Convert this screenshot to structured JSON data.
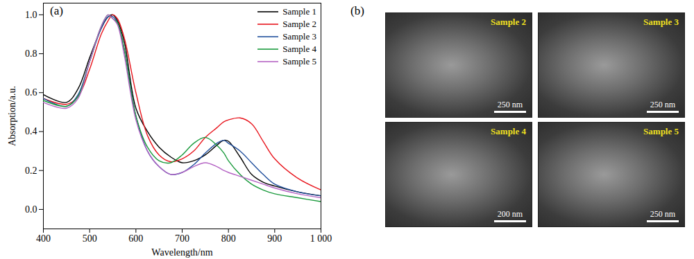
{
  "chart_data": {
    "type": "line",
    "panel_label": "(a)",
    "x_label": "Wavelength/nm",
    "y_label": "Absorption/a.u.",
    "x": [
      400,
      450,
      475,
      500,
      525,
      540,
      550,
      560,
      575,
      600,
      625,
      650,
      675,
      700,
      725,
      750,
      775,
      790,
      800,
      825,
      850,
      875,
      900,
      950,
      1000
    ],
    "series": [
      {
        "name": "Sample 1",
        "color": "#000000",
        "values": [
          0.59,
          0.55,
          0.62,
          0.78,
          0.93,
          0.99,
          1.0,
          0.97,
          0.86,
          0.52,
          0.4,
          0.32,
          0.27,
          0.24,
          0.25,
          0.28,
          0.33,
          0.355,
          0.35,
          0.27,
          0.18,
          0.14,
          0.12,
          0.09,
          0.07
        ]
      },
      {
        "name": "Sample 2",
        "color": "#e8141c",
        "values": [
          0.57,
          0.54,
          0.58,
          0.72,
          0.9,
          0.97,
          1.0,
          0.98,
          0.88,
          0.6,
          0.38,
          0.28,
          0.245,
          0.26,
          0.3,
          0.37,
          0.42,
          0.45,
          0.46,
          0.47,
          0.44,
          0.35,
          0.26,
          0.16,
          0.1
        ]
      },
      {
        "name": "Sample 3",
        "color": "#1f4e9c",
        "values": [
          0.57,
          0.53,
          0.59,
          0.76,
          0.93,
          0.99,
          0.99,
          0.96,
          0.82,
          0.48,
          0.3,
          0.22,
          0.18,
          0.19,
          0.23,
          0.29,
          0.34,
          0.355,
          0.34,
          0.3,
          0.24,
          0.18,
          0.13,
          0.09,
          0.07
        ]
      },
      {
        "name": "Sample 4",
        "color": "#1a9a3c",
        "values": [
          0.56,
          0.53,
          0.58,
          0.76,
          0.94,
          1.0,
          0.98,
          0.96,
          0.82,
          0.48,
          0.32,
          0.25,
          0.24,
          0.28,
          0.34,
          0.37,
          0.33,
          0.29,
          0.25,
          0.18,
          0.13,
          0.1,
          0.08,
          0.06,
          0.04
        ]
      },
      {
        "name": "Sample 5",
        "color": "#b463c4",
        "values": [
          0.55,
          0.52,
          0.57,
          0.76,
          0.94,
          1.0,
          0.98,
          0.95,
          0.79,
          0.46,
          0.3,
          0.22,
          0.18,
          0.19,
          0.22,
          0.24,
          0.22,
          0.2,
          0.19,
          0.17,
          0.15,
          0.13,
          0.11,
          0.08,
          0.06
        ]
      }
    ],
    "xlim": [
      400,
      1000
    ],
    "xticks": [
      400,
      500,
      600,
      700,
      800,
      900,
      {
        "value": 1000,
        "label": "1 000"
      }
    ],
    "ylim": [
      -0.1,
      1.06
    ],
    "yticks": [
      {
        "value": 0,
        "label": "0.0"
      },
      {
        "value": 0.2,
        "label": "0.2"
      },
      {
        "value": 0.4,
        "label": "0.4"
      },
      {
        "value": 0.6,
        "label": "0.6"
      },
      {
        "value": 0.8,
        "label": "0.8"
      },
      {
        "value": 1.0,
        "label": "1.0"
      }
    ],
    "grid": false,
    "legend": "top-right"
  },
  "micrographs": {
    "panel_label": "(b)",
    "images": [
      {
        "label": "Sample 2",
        "scale_bar": "250 nm"
      },
      {
        "label": "Sample 3",
        "scale_bar": "250 nm"
      },
      {
        "label": "Sample 4",
        "scale_bar": "200 nm"
      },
      {
        "label": "Sample 5",
        "scale_bar": "250 nm"
      }
    ]
  }
}
